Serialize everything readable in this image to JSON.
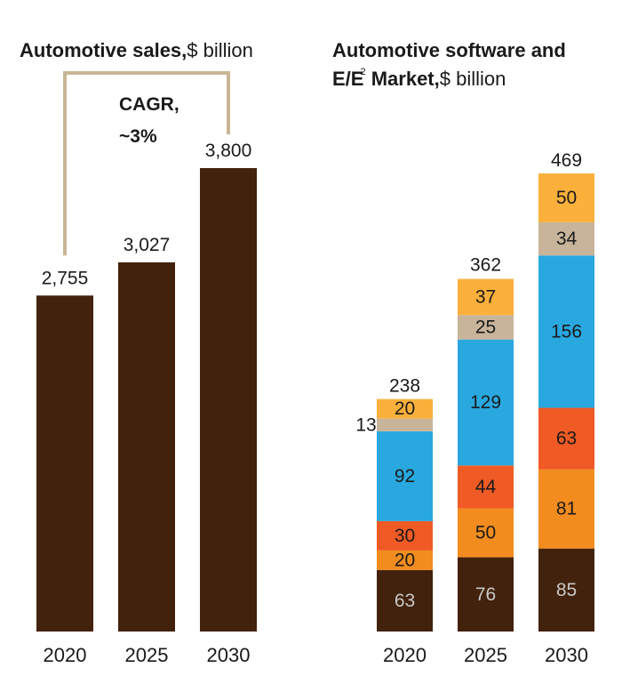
{
  "colors": {
    "dark_brown": "#42220c",
    "orange": "#f28c1e",
    "yellow_orange": "#fbb03b",
    "red_orange": "#f05a24",
    "blue": "#29a8e0",
    "beige": "#c8b49a",
    "bracket": "#c8b594",
    "light_label": "#c9c9c9"
  },
  "left_title": {
    "bold": "Automotive sales,",
    "unit": "$ billion"
  },
  "right_title": {
    "line1": "Automotive software and",
    "line2_bold_a": "E/E",
    "sup": "2",
    "line2_bold_b": " Market,",
    "unit": "$ billion"
  },
  "cagr": {
    "line1": "CAGR,",
    "line2": "~3%"
  },
  "chart_data": [
    {
      "type": "bar",
      "title": "Automotive sales, $ billion",
      "categories": [
        "2020",
        "2025",
        "2030"
      ],
      "values": [
        2755,
        3027,
        3800
      ],
      "value_labels": [
        "2,755",
        "3,027",
        "3,800"
      ],
      "annotation": "CAGR, ~3%",
      "ylim": [
        0,
        3800
      ]
    },
    {
      "type": "bar",
      "stacked": true,
      "title": "Automotive software and E/E2 Market, $ billion",
      "categories": [
        "2020",
        "2025",
        "2030"
      ],
      "tick_labels": [
        "2020",
        "2025",
        "2030"
      ],
      "series": [
        {
          "name": "segment-1",
          "color": "#42220c",
          "values": [
            63,
            76,
            85
          ]
        },
        {
          "name": "segment-2",
          "color": "#f28c1e",
          "values": [
            20,
            50,
            81
          ]
        },
        {
          "name": "segment-3",
          "color": "#f05a24",
          "values": [
            30,
            44,
            63
          ]
        },
        {
          "name": "segment-4",
          "color": "#29a8e0",
          "values": [
            92,
            129,
            156
          ]
        },
        {
          "name": "segment-5",
          "color": "#c8b49a",
          "values": [
            13,
            25,
            34
          ]
        },
        {
          "name": "segment-6",
          "color": "#fbb03b",
          "values": [
            20,
            37,
            50
          ]
        }
      ],
      "totals": [
        238,
        362,
        469
      ],
      "outside_labels": [
        {
          "category": "2020",
          "series": "segment-5",
          "text": "13"
        }
      ],
      "ylim": [
        0,
        469
      ]
    }
  ]
}
